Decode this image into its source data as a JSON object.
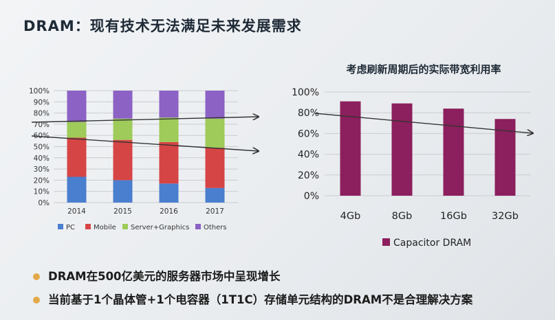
{
  "slide": {
    "title": "DRAM：现有技术无法满足未来发展需求"
  },
  "bullets": [
    {
      "text": "DRAM在500亿美元的服务器市场中呈现增长"
    },
    {
      "text": "当前基于1个晶体管+1个电容器（1T1C）存储单元结构的DRAM不是合理解决方案"
    }
  ],
  "colors": {
    "PC": "#4a7fcf",
    "Mobile": "#d64545",
    "Server+Graphics": "#9ecb59",
    "Others": "#8c62c5",
    "Capacitor DRAM": "#8c1f5d",
    "bullet": "#e2a94a"
  },
  "chart_data": [
    {
      "type": "bar",
      "stacked": true,
      "title": "",
      "categories": [
        "2014",
        "2015",
        "2016",
        "2017"
      ],
      "ylim": [
        0,
        100
      ],
      "yticks": [
        "0%",
        "10%",
        "20%",
        "30%",
        "40%",
        "50%",
        "60%",
        "70%",
        "80%",
        "90%",
        "100%"
      ],
      "series": [
        {
          "name": "PC",
          "values": [
            23,
            20,
            17,
            13
          ]
        },
        {
          "name": "Mobile",
          "values": [
            35,
            36,
            37,
            36
          ]
        },
        {
          "name": "Server+Graphics",
          "values": [
            14,
            19,
            22,
            26
          ]
        },
        {
          "name": "Others",
          "values": [
            28,
            25,
            24,
            25
          ]
        }
      ],
      "legend": "bottom",
      "trend_arrows": 2
    },
    {
      "type": "bar",
      "title": "考虑刷新周期后的实际带宽利用率",
      "categories": [
        "4Gb",
        "8Gb",
        "16Gb",
        "32Gb"
      ],
      "ylim": [
        0,
        100
      ],
      "yticks": [
        "0%",
        "20%",
        "40%",
        "60%",
        "80%",
        "100%"
      ],
      "series": [
        {
          "name": "Capacitor DRAM",
          "values": [
            91,
            89,
            84,
            74
          ]
        }
      ],
      "legend": "bottom",
      "trend_arrows": 1
    }
  ]
}
